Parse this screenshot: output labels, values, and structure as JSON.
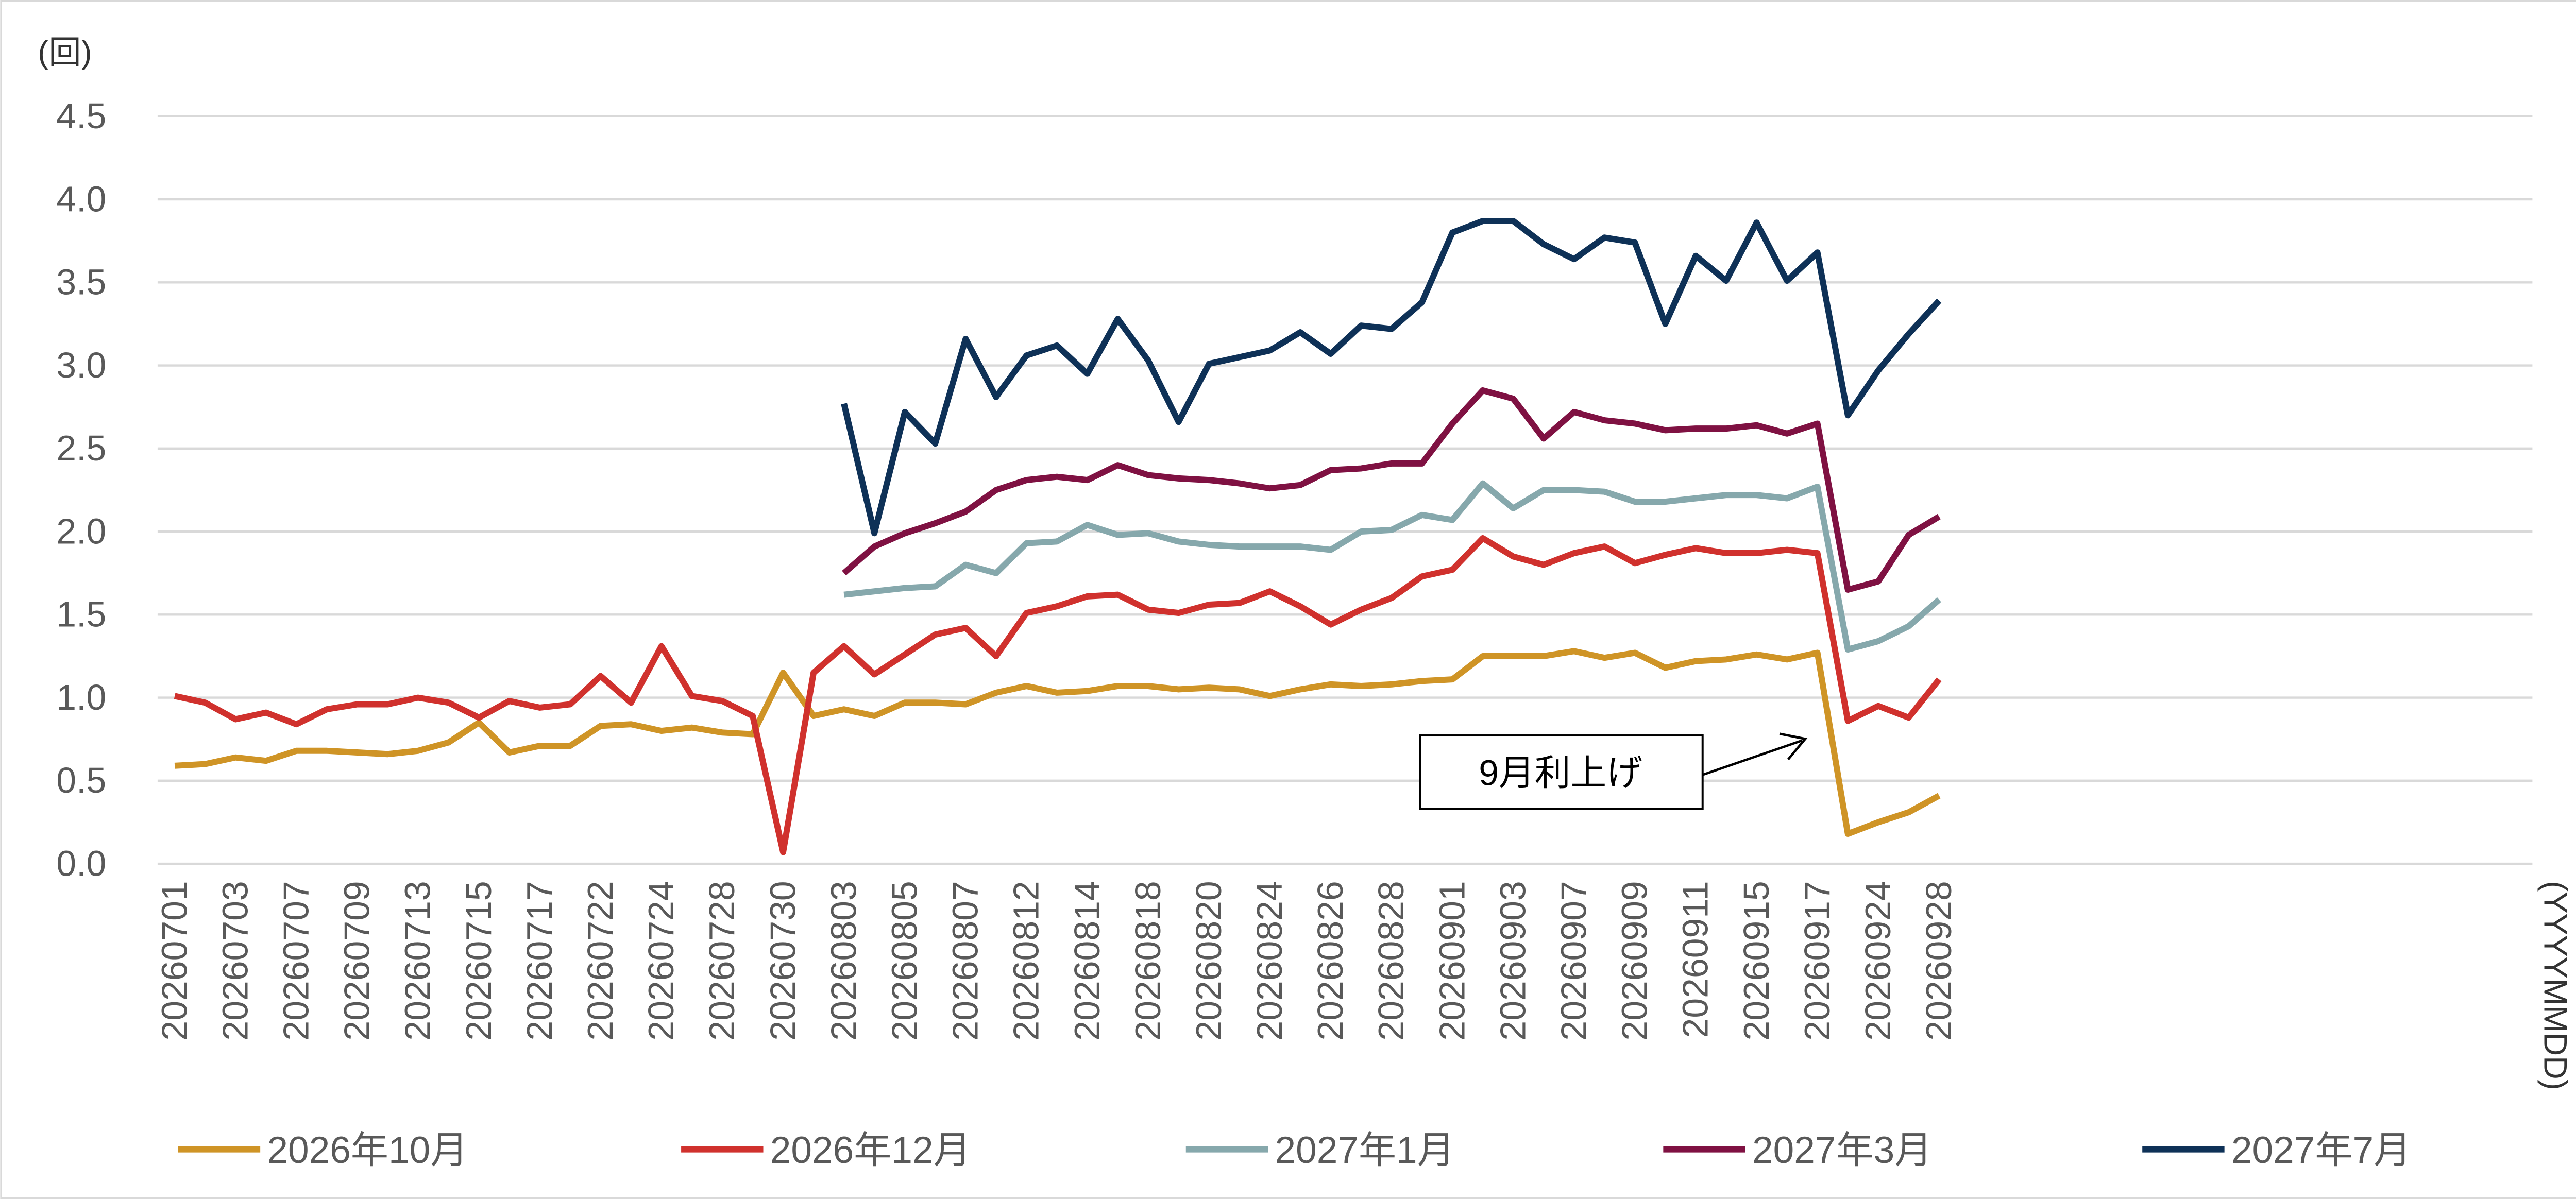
{
  "chart_data": {
    "type": "line",
    "y_label": "(回)",
    "x_label": "(YYYYMMDD)",
    "annotation": "9月利上げ",
    "categories": [
      "20260701",
      null,
      "20260703",
      null,
      "20260707",
      null,
      "20260709",
      null,
      "20260713",
      null,
      "20260715",
      null,
      "20260717",
      null,
      "20260722",
      null,
      "20260724",
      null,
      "20260728",
      null,
      "20260730",
      null,
      "20260803",
      null,
      "20260805",
      null,
      "20260807",
      null,
      "20260812",
      null,
      "20260814",
      null,
      "20260818",
      null,
      "20260820",
      null,
      "20260824",
      null,
      "20260826",
      null,
      "20260828",
      null,
      "20260901",
      null,
      "20260903",
      null,
      "20260907",
      null,
      "20260909",
      null,
      "20260911",
      null,
      "20260915",
      null,
      "20260917",
      null,
      "20260924",
      null,
      "20260928"
    ],
    "series": [
      {
        "name": "2026年10月",
        "color": "#CF9426",
        "values": [
          0.59,
          0.6,
          0.64,
          0.62,
          0.68,
          0.68,
          0.67,
          0.66,
          0.68,
          0.73,
          0.85,
          0.67,
          0.71,
          0.71,
          0.83,
          0.84,
          0.8,
          0.82,
          0.79,
          0.78,
          1.15,
          0.89,
          0.93,
          0.89,
          0.97,
          0.97,
          0.96,
          1.03,
          1.07,
          1.03,
          1.04,
          1.07,
          1.07,
          1.05,
          1.06,
          1.05,
          1.01,
          1.05,
          1.08,
          1.07,
          1.08,
          1.1,
          1.11,
          1.25,
          1.25,
          1.25,
          1.28,
          1.24,
          1.27,
          1.18,
          1.22,
          1.23,
          1.26,
          1.23,
          1.27,
          0.18,
          0.25,
          0.31,
          0.41
        ]
      },
      {
        "name": "2026年12月",
        "color": "#D0312D",
        "values": [
          1.01,
          0.97,
          0.87,
          0.91,
          0.84,
          0.93,
          0.96,
          0.96,
          1.0,
          0.97,
          0.88,
          0.98,
          0.94,
          0.96,
          1.13,
          0.97,
          1.31,
          1.01,
          0.98,
          0.89,
          0.07,
          1.15,
          1.31,
          1.14,
          1.26,
          1.38,
          1.42,
          1.25,
          1.51,
          1.55,
          1.61,
          1.62,
          1.53,
          1.51,
          1.56,
          1.57,
          1.64,
          1.55,
          1.44,
          1.53,
          1.6,
          1.73,
          1.77,
          1.96,
          1.85,
          1.8,
          1.87,
          1.91,
          1.81,
          1.86,
          1.9,
          1.87,
          1.87,
          1.89,
          1.87,
          0.86,
          0.95,
          0.88,
          1.11
        ]
      },
      {
        "name": "2027年1月",
        "color": "#86A8AC",
        "values": [
          null,
          null,
          null,
          null,
          null,
          null,
          null,
          null,
          null,
          null,
          null,
          null,
          null,
          null,
          null,
          null,
          null,
          null,
          null,
          null,
          null,
          null,
          1.62,
          1.64,
          1.66,
          1.67,
          1.8,
          1.75,
          1.93,
          1.94,
          2.04,
          1.98,
          1.99,
          1.94,
          1.92,
          1.91,
          1.91,
          1.91,
          1.89,
          2.0,
          2.01,
          2.1,
          2.07,
          2.29,
          2.14,
          2.25,
          2.25,
          2.24,
          2.18,
          2.18,
          2.2,
          2.22,
          2.22,
          2.2,
          2.27,
          1.29,
          1.34,
          1.43,
          1.59
        ]
      },
      {
        "name": "2027年3月",
        "color": "#7F1142",
        "values": [
          null,
          null,
          null,
          null,
          null,
          null,
          null,
          null,
          null,
          null,
          null,
          null,
          null,
          null,
          null,
          null,
          null,
          null,
          null,
          null,
          null,
          null,
          1.75,
          1.91,
          1.99,
          2.05,
          2.12,
          2.25,
          2.31,
          2.33,
          2.31,
          2.4,
          2.34,
          2.32,
          2.31,
          2.29,
          2.26,
          2.28,
          2.37,
          2.38,
          2.41,
          2.41,
          2.65,
          2.85,
          2.8,
          2.56,
          2.72,
          2.67,
          2.65,
          2.61,
          2.62,
          2.62,
          2.64,
          2.59,
          2.65,
          1.65,
          1.7,
          1.98,
          2.09
        ]
      },
      {
        "name": "2027年7月",
        "color": "#0E3157",
        "values": [
          null,
          null,
          null,
          null,
          null,
          null,
          null,
          null,
          null,
          null,
          null,
          null,
          null,
          null,
          null,
          null,
          null,
          null,
          null,
          null,
          null,
          null,
          2.77,
          1.99,
          2.72,
          2.53,
          3.16,
          2.81,
          3.06,
          3.12,
          2.95,
          3.28,
          3.03,
          2.66,
          3.01,
          3.05,
          3.09,
          3.2,
          3.07,
          3.24,
          3.22,
          3.38,
          3.8,
          3.87,
          3.87,
          3.73,
          3.64,
          3.77,
          3.74,
          3.25,
          3.66,
          3.51,
          3.86,
          3.51,
          3.68,
          2.7,
          2.97,
          3.19,
          3.39
        ]
      }
    ],
    "ylim": [
      0,
      4.5
    ],
    "yticks": [
      {
        "value": 0,
        "label": "0.0"
      },
      0.5,
      {
        "value": 1,
        "label": "1.0"
      },
      1.5,
      {
        "value": 2,
        "label": "2.0"
      },
      2.5,
      {
        "value": 3,
        "label": "3.0"
      },
      3.5,
      {
        "value": 4,
        "label": "4.0"
      },
      4.5
    ],
    "grid": true,
    "legend": "bottom"
  }
}
